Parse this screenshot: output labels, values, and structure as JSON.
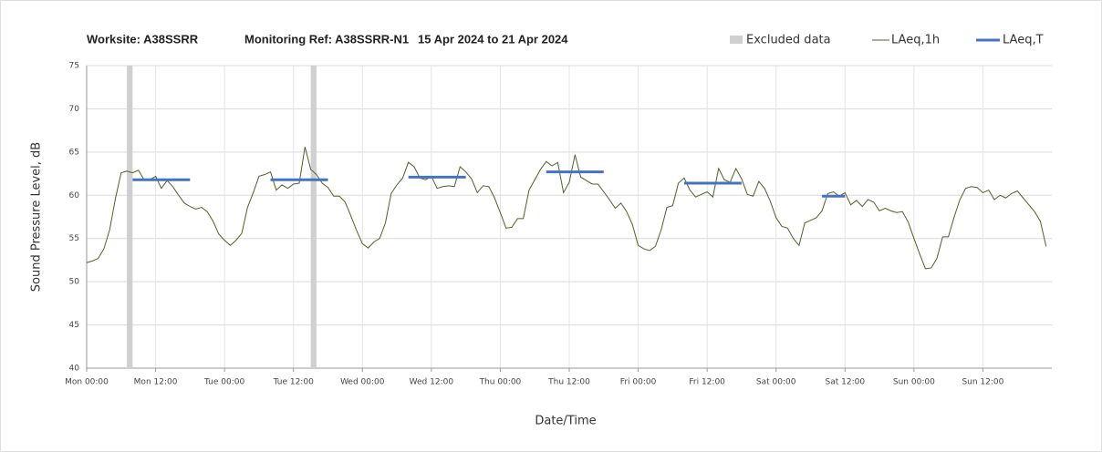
{
  "chart_data": {
    "type": "line",
    "title_parts": [
      "Worksite: A38SSRR",
      "Monitoring Ref: A38SSRR-N1",
      "15 Apr 2024 to 21 Apr 2024"
    ],
    "x_label": "Date/Time",
    "y_label": "Sound Pressure Level, dB",
    "xlim": [
      0,
      168
    ],
    "xticks": [
      {
        "value": 0,
        "label": "Mon 00:00"
      },
      {
        "value": 12,
        "label": "Mon 12:00"
      },
      {
        "value": 24,
        "label": "Tue 00:00"
      },
      {
        "value": 36,
        "label": "Tue 12:00"
      },
      {
        "value": 48,
        "label": "Wed 00:00"
      },
      {
        "value": 60,
        "label": "Wed 12:00"
      },
      {
        "value": 72,
        "label": "Thu 00:00"
      },
      {
        "value": 84,
        "label": "Thu 12:00"
      },
      {
        "value": 96,
        "label": "Fri 00:00"
      },
      {
        "value": 108,
        "label": "Fri 12:00"
      },
      {
        "value": 120,
        "label": "Sat 00:00"
      },
      {
        "value": 132,
        "label": "Sat 12:00"
      },
      {
        "value": 144,
        "label": "Sun 00:00"
      },
      {
        "value": 156,
        "label": "Sun 12:00"
      }
    ],
    "ylim": [
      40,
      75
    ],
    "yticks": [
      40,
      45,
      50,
      55,
      60,
      65,
      70,
      75
    ],
    "grid": true,
    "x": [
      0,
      1,
      2,
      3,
      4,
      5,
      6,
      7,
      8,
      9,
      10,
      11,
      12,
      13,
      14,
      15,
      16,
      17,
      18,
      19,
      20,
      21,
      22,
      23,
      24,
      25,
      26,
      27,
      28,
      29,
      30,
      31,
      32,
      33,
      34,
      35,
      36,
      37,
      38,
      39,
      40,
      41,
      42,
      43,
      44,
      45,
      46,
      47,
      48,
      49,
      50,
      51,
      52,
      53,
      54,
      55,
      56,
      57,
      58,
      59,
      60,
      61,
      62,
      63,
      64,
      65,
      66,
      67,
      68,
      69,
      70,
      71,
      72,
      73,
      74,
      75,
      76,
      77,
      78,
      79,
      80,
      81,
      82,
      83,
      84,
      85,
      86,
      87,
      88,
      89,
      90,
      91,
      92,
      93,
      94,
      95,
      96,
      97,
      98,
      99,
      100,
      101,
      102,
      103,
      104,
      105,
      106,
      107,
      108,
      109,
      110,
      111,
      112,
      113,
      114,
      115,
      116,
      117,
      118,
      119,
      120,
      121,
      122,
      123,
      124,
      125,
      126,
      127,
      128,
      129,
      130,
      131,
      132,
      133,
      134,
      135,
      136,
      137,
      138,
      139,
      140,
      141,
      142,
      143,
      144,
      145,
      146,
      147,
      148,
      149,
      150,
      151,
      152,
      153,
      154,
      155,
      156,
      157,
      158,
      159,
      160,
      161,
      162,
      163,
      164,
      165,
      166,
      167
    ],
    "series": [
      {
        "name": "LAeq,1h",
        "color": "#4f6228",
        "values": [
          52.2,
          52.4,
          52.7,
          53.8,
          56,
          59.6,
          62.6,
          62.8,
          62.6,
          62.9,
          61.8,
          61.8,
          62.2,
          60.8,
          61.7,
          61,
          60,
          59.1,
          58.7,
          58.4,
          58.6,
          58.1,
          57,
          55.5,
          54.8,
          54.2,
          54.8,
          55.6,
          58.6,
          60.3,
          62.2,
          62.4,
          62.7,
          60.6,
          61.2,
          60.8,
          61.3,
          61.4,
          65.6,
          63,
          62.4,
          61.4,
          60.9,
          59.9,
          59.9,
          59.2,
          57.6,
          55.9,
          54.4,
          53.9,
          54.6,
          55,
          56.8,
          60.2,
          61.2,
          62,
          63.8,
          63.3,
          62,
          61.8,
          62.2,
          60.8,
          61,
          61.1,
          61,
          63.3,
          62.7,
          61.9,
          60.3,
          61.1,
          61,
          59.7,
          58,
          56.2,
          56.3,
          57.3,
          57.3,
          60.6,
          61.8,
          63,
          63.9,
          63.4,
          63.8,
          60.3,
          61.5,
          64.7,
          62.1,
          61.7,
          61.3,
          61.3,
          60.4,
          59.5,
          58.5,
          59.1,
          58.1,
          56.6,
          54.2,
          53.8,
          53.6,
          54.1,
          56,
          58.6,
          58.8,
          61.4,
          62,
          60.6,
          59.8,
          60.1,
          60.4,
          59.8,
          63.1,
          61.8,
          61.5,
          63.1,
          61.9,
          60.1,
          59.9,
          61.6,
          60.8,
          59.3,
          57.4,
          56.4,
          56.2,
          55,
          54.2,
          56.8,
          57.1,
          57.4,
          58.2,
          60.2,
          60.4,
          59.9,
          60.3,
          58.9,
          59.4,
          58.7,
          59.5,
          59.2,
          58.2,
          58.5,
          58.2,
          58,
          58.1,
          56.9,
          55,
          53.2,
          51.5,
          51.6,
          52.7,
          55.2,
          55.2,
          57.5,
          59.5,
          60.8,
          61,
          60.9,
          60.3,
          60.6,
          59.5,
          60,
          59.7,
          60.2,
          60.5,
          59.7,
          58.9,
          58.1,
          57,
          54.1
        ]
      }
    ],
    "excluded": {
      "name": "Excluded data",
      "color": "#d0d0d0",
      "ranges": [
        [
          7,
          8
        ],
        [
          39,
          40
        ]
      ]
    },
    "laeq_t": {
      "name": "LAeq,T",
      "color": "#4472c4",
      "segments": [
        {
          "x": [
            8,
            18
          ],
          "value": 61.8
        },
        {
          "x": [
            32,
            42
          ],
          "value": 61.8
        },
        {
          "x": [
            56,
            66
          ],
          "value": 62.1
        },
        {
          "x": [
            80,
            90
          ],
          "value": 62.7
        },
        {
          "x": [
            104,
            114
          ],
          "value": 61.4
        },
        {
          "x": [
            128,
            132
          ],
          "value": 59.9
        }
      ]
    }
  }
}
